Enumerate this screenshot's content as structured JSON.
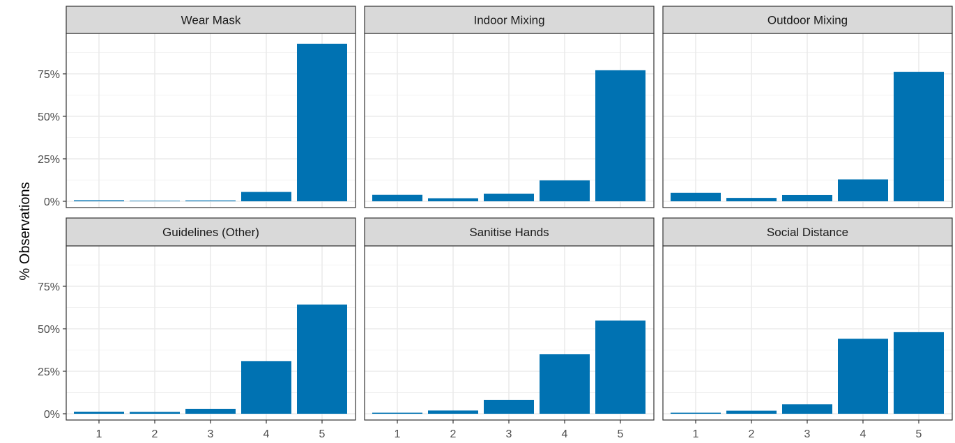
{
  "chart_data": {
    "type": "bar",
    "layout": "facet-grid-2x3",
    "ylabel": "% Observations",
    "xlabel": "",
    "categories": [
      "1",
      "2",
      "3",
      "4",
      "5"
    ],
    "y_ticks": [
      0,
      25,
      50,
      75
    ],
    "y_tick_labels": [
      "0%",
      "25%",
      "50%",
      "75%"
    ],
    "ylim": [
      0,
      98
    ],
    "grid": true,
    "bar_color": "#0072B2",
    "strip_color": "#D9D9D9",
    "facets": [
      {
        "title": "Wear Mask",
        "values": [
          0.6,
          0.3,
          0.5,
          5.5,
          92.7
        ]
      },
      {
        "title": "Indoor Mixing",
        "values": [
          3.8,
          1.8,
          4.5,
          12.3,
          77.1
        ]
      },
      {
        "title": "Outdoor Mixing",
        "values": [
          5.0,
          2.0,
          3.7,
          12.9,
          76.2
        ]
      },
      {
        "title": "Guidelines (Other)",
        "values": [
          1.2,
          1.1,
          2.9,
          31.0,
          64.2
        ]
      },
      {
        "title": "Sanitise Hands",
        "values": [
          0.6,
          1.9,
          8.2,
          35.1,
          54.8
        ]
      },
      {
        "title": "Social Distance",
        "values": [
          0.6,
          1.8,
          5.6,
          44.1,
          48.0
        ]
      }
    ]
  }
}
